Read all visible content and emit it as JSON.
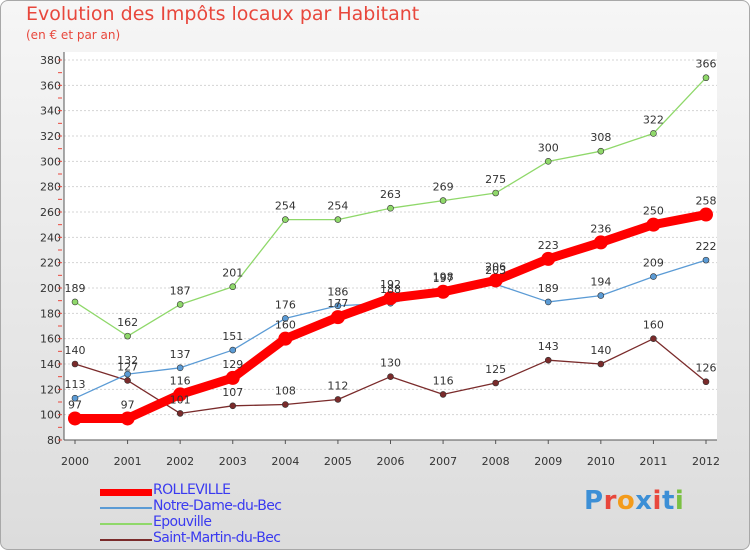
{
  "header": {
    "title": "Evolution des Impôts locaux par Habitant",
    "subtitle": "(en € et par an)"
  },
  "logo": {
    "text": "Proxiti",
    "colors": [
      "#3c8fd6",
      "#e8473c",
      "#f39b1b",
      "#3c8fd6",
      "#e8473c",
      "#3c8fd6",
      "#7bc043"
    ]
  },
  "chart_data": {
    "type": "line",
    "categories": [
      "2000",
      "2001",
      "2002",
      "2003",
      "2004",
      "2005",
      "2006",
      "2007",
      "2008",
      "2009",
      "2010",
      "2011",
      "2012"
    ],
    "ylim": [
      80,
      380
    ],
    "yticks": [
      80,
      100,
      120,
      140,
      160,
      180,
      200,
      220,
      240,
      260,
      280,
      300,
      320,
      340,
      360,
      380
    ],
    "grid": true,
    "legend_position": "bottom-left",
    "series": [
      {
        "name": "ROLLEVILLE",
        "color": "#ff0000",
        "values": [
          97,
          97,
          116,
          129,
          160,
          177,
          192,
          197,
          206,
          223,
          236,
          250,
          258
        ]
      },
      {
        "name": "Notre-Dame-du-Bec",
        "color": "#5b9bd5",
        "values": [
          113,
          132,
          137,
          151,
          176,
          186,
          188,
          198,
          203,
          189,
          194,
          209,
          222
        ]
      },
      {
        "name": "Epouville",
        "color": "#8fd86a",
        "values": [
          189,
          162,
          187,
          201,
          254,
          254,
          263,
          269,
          275,
          300,
          308,
          322,
          366
        ]
      },
      {
        "name": "Saint-Martin-du-Bec",
        "color": "#7a2b2b",
        "values": [
          140,
          127,
          101,
          107,
          108,
          112,
          130,
          116,
          125,
          143,
          140,
          160,
          126
        ]
      }
    ],
    "data_labels": [
      [
        "97",
        "97",
        "116",
        "129",
        "160",
        "177",
        "192",
        "197",
        "206",
        "223",
        "236",
        "250",
        "258"
      ],
      [
        "113",
        "132",
        "137",
        "151",
        "176",
        "186",
        "188",
        "198",
        "203",
        "189",
        "194",
        "209",
        "222"
      ],
      [
        "189",
        "162",
        "187",
        "201",
        "254",
        "254",
        "263",
        "269",
        "275",
        "300",
        "308",
        "322",
        "366"
      ],
      [
        "140",
        "127",
        "101",
        "107",
        "108",
        "112",
        "130",
        "116",
        "125",
        "143",
        "140",
        "160",
        "126"
      ]
    ]
  }
}
